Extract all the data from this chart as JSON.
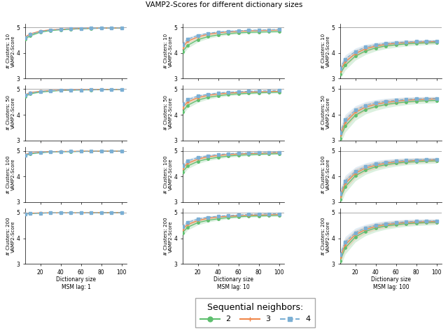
{
  "title": "VAMP2-Scores for different dictionary sizes",
  "n_clusters": [
    10,
    50,
    100,
    200
  ],
  "msm_lags": [
    1,
    10,
    100
  ],
  "msm_lag_labels": [
    "MSM lag: 1",
    "MSM lag: 10",
    "MSM lag: 100"
  ],
  "dict_sizes": [
    5,
    10,
    20,
    30,
    40,
    50,
    60,
    70,
    80,
    90,
    100
  ],
  "xlabel": "Dictionary size",
  "seq_neighbors": [
    2,
    3,
    4
  ],
  "colors": [
    "#5dbf6e",
    "#f0874a",
    "#7bafd4"
  ],
  "colors_fill": [
    "#5dbf6e",
    "#f0874a",
    "#7bafd4"
  ],
  "markers": [
    "o",
    "+",
    "s"
  ],
  "linestyles": [
    "-",
    "-",
    "--"
  ],
  "legend_label": "Sequential neighbors:",
  "ylim": [
    3,
    5.15
  ],
  "yticks": [
    3,
    4,
    5
  ],
  "xticks": [
    20,
    40,
    60,
    80,
    100
  ],
  "hline_y": 5.0,
  "data": {
    "lag1": {
      "clusters10": {
        "n2": {
          "mean": [
            4.55,
            4.68,
            4.82,
            4.88,
            4.91,
            4.93,
            4.95,
            4.96,
            4.97,
            4.97,
            4.98
          ],
          "std": [
            0.04,
            0.035,
            0.025,
            0.018,
            0.015,
            0.012,
            0.01,
            0.009,
            0.008,
            0.008,
            0.007
          ]
        },
        "n3": {
          "mean": [
            4.63,
            4.75,
            4.86,
            4.91,
            4.93,
            4.95,
            4.96,
            4.97,
            4.97,
            4.98,
            4.98
          ],
          "std": [
            0.035,
            0.028,
            0.02,
            0.015,
            0.012,
            0.01,
            0.009,
            0.008,
            0.007,
            0.007,
            0.006
          ]
        },
        "n4": {
          "mean": [
            4.6,
            4.73,
            4.84,
            4.9,
            4.93,
            4.95,
            4.96,
            4.97,
            4.97,
            4.98,
            4.98
          ],
          "std": [
            0.038,
            0.03,
            0.022,
            0.016,
            0.013,
            0.011,
            0.009,
            0.008,
            0.007,
            0.007,
            0.006
          ]
        }
      },
      "clusters50": {
        "n2": {
          "mean": [
            4.72,
            4.82,
            4.89,
            4.92,
            4.95,
            4.96,
            4.97,
            4.97,
            4.98,
            4.98,
            4.99
          ],
          "std": [
            0.035,
            0.028,
            0.02,
            0.015,
            0.012,
            0.01,
            0.009,
            0.008,
            0.007,
            0.006,
            0.006
          ]
        },
        "n3": {
          "mean": [
            4.78,
            4.87,
            4.92,
            4.95,
            4.96,
            4.97,
            4.98,
            4.98,
            4.99,
            4.99,
            4.99
          ],
          "std": [
            0.03,
            0.023,
            0.016,
            0.012,
            0.01,
            0.009,
            0.008,
            0.007,
            0.006,
            0.006,
            0.005
          ]
        },
        "n4": {
          "mean": [
            4.76,
            4.85,
            4.91,
            4.94,
            4.96,
            4.97,
            4.97,
            4.98,
            4.98,
            4.99,
            4.99
          ],
          "std": [
            0.032,
            0.025,
            0.018,
            0.013,
            0.011,
            0.009,
            0.008,
            0.007,
            0.007,
            0.006,
            0.005
          ]
        }
      },
      "clusters100": {
        "n2": {
          "mean": [
            4.82,
            4.89,
            4.93,
            4.96,
            4.97,
            4.97,
            4.98,
            4.98,
            4.99,
            4.99,
            4.99
          ],
          "std": [
            0.028,
            0.022,
            0.016,
            0.012,
            0.01,
            0.009,
            0.008,
            0.007,
            0.006,
            0.006,
            0.005
          ]
        },
        "n3": {
          "mean": [
            4.86,
            4.92,
            4.95,
            4.97,
            4.98,
            4.98,
            4.99,
            4.99,
            4.99,
            4.99,
            4.99
          ],
          "std": [
            0.024,
            0.018,
            0.013,
            0.01,
            0.008,
            0.007,
            0.006,
            0.006,
            0.005,
            0.005,
            0.004
          ]
        },
        "n4": {
          "mean": [
            4.84,
            4.91,
            4.94,
            4.97,
            4.97,
            4.98,
            4.98,
            4.99,
            4.99,
            4.99,
            4.99
          ],
          "std": [
            0.026,
            0.02,
            0.015,
            0.011,
            0.009,
            0.008,
            0.007,
            0.006,
            0.006,
            0.005,
            0.005
          ]
        }
      },
      "clusters200": {
        "n2": {
          "mean": [
            4.94,
            4.97,
            4.98,
            4.99,
            4.99,
            4.99,
            4.99,
            4.99,
            4.99,
            5.0,
            5.0
          ],
          "std": [
            0.015,
            0.01,
            0.008,
            0.006,
            0.005,
            0.005,
            0.004,
            0.004,
            0.004,
            0.003,
            0.003
          ]
        },
        "n3": {
          "mean": [
            4.96,
            4.98,
            4.99,
            4.99,
            4.99,
            4.99,
            4.99,
            5.0,
            5.0,
            5.0,
            5.0
          ],
          "std": [
            0.012,
            0.008,
            0.006,
            0.005,
            0.004,
            0.004,
            0.003,
            0.003,
            0.003,
            0.003,
            0.002
          ]
        },
        "n4": {
          "mean": [
            4.95,
            4.97,
            4.98,
            4.99,
            4.99,
            4.99,
            4.99,
            4.99,
            5.0,
            5.0,
            5.0
          ],
          "std": [
            0.013,
            0.009,
            0.007,
            0.005,
            0.004,
            0.004,
            0.003,
            0.003,
            0.003,
            0.003,
            0.002
          ]
        }
      }
    },
    "lag10": {
      "clusters10": {
        "n2": {
          "mean": [
            4.05,
            4.3,
            4.52,
            4.64,
            4.71,
            4.76,
            4.79,
            4.81,
            4.82,
            4.83,
            4.84
          ],
          "std": [
            0.13,
            0.11,
            0.09,
            0.07,
            0.06,
            0.05,
            0.05,
            0.04,
            0.04,
            0.03,
            0.03
          ]
        },
        "n3": {
          "mean": [
            4.22,
            4.46,
            4.63,
            4.73,
            4.79,
            4.83,
            4.85,
            4.87,
            4.88,
            4.89,
            4.9
          ],
          "std": [
            0.11,
            0.09,
            0.07,
            0.06,
            0.05,
            0.04,
            0.04,
            0.03,
            0.03,
            0.03,
            0.02
          ]
        },
        "n4": {
          "mean": [
            4.33,
            4.54,
            4.69,
            4.77,
            4.82,
            4.85,
            4.87,
            4.89,
            4.9,
            4.91,
            4.92
          ],
          "std": [
            0.1,
            0.08,
            0.06,
            0.05,
            0.04,
            0.04,
            0.03,
            0.03,
            0.03,
            0.02,
            0.02
          ]
        }
      },
      "clusters50": {
        "n2": {
          "mean": [
            4.12,
            4.37,
            4.57,
            4.68,
            4.74,
            4.79,
            4.82,
            4.84,
            4.86,
            4.87,
            4.88
          ],
          "std": [
            0.13,
            0.11,
            0.09,
            0.07,
            0.06,
            0.05,
            0.05,
            0.04,
            0.04,
            0.03,
            0.03
          ]
        },
        "n3": {
          "mean": [
            4.28,
            4.5,
            4.67,
            4.76,
            4.81,
            4.85,
            4.87,
            4.89,
            4.9,
            4.91,
            4.92
          ],
          "std": [
            0.11,
            0.09,
            0.07,
            0.06,
            0.05,
            0.04,
            0.04,
            0.03,
            0.03,
            0.03,
            0.02
          ]
        },
        "n4": {
          "mean": [
            4.4,
            4.59,
            4.73,
            4.8,
            4.85,
            4.88,
            4.9,
            4.92,
            4.93,
            4.94,
            4.95
          ],
          "std": [
            0.1,
            0.08,
            0.06,
            0.05,
            0.04,
            0.04,
            0.03,
            0.03,
            0.02,
            0.02,
            0.02
          ]
        }
      },
      "clusters100": {
        "n2": {
          "mean": [
            4.18,
            4.41,
            4.59,
            4.69,
            4.75,
            4.8,
            4.83,
            4.85,
            4.87,
            4.88,
            4.89
          ],
          "std": [
            0.13,
            0.11,
            0.09,
            0.07,
            0.06,
            0.05,
            0.05,
            0.04,
            0.04,
            0.03,
            0.03
          ]
        },
        "n3": {
          "mean": [
            4.32,
            4.52,
            4.68,
            4.77,
            4.82,
            4.86,
            4.88,
            4.9,
            4.91,
            4.92,
            4.93
          ],
          "std": [
            0.11,
            0.09,
            0.07,
            0.06,
            0.05,
            0.04,
            0.04,
            0.03,
            0.03,
            0.02,
            0.02
          ]
        },
        "n4": {
          "mean": [
            4.42,
            4.61,
            4.74,
            4.81,
            4.86,
            4.89,
            4.91,
            4.92,
            4.93,
            4.94,
            4.95
          ],
          "std": [
            0.1,
            0.08,
            0.06,
            0.05,
            0.04,
            0.04,
            0.03,
            0.03,
            0.02,
            0.02,
            0.02
          ]
        }
      },
      "clusters200": {
        "n2": {
          "mean": [
            4.22,
            4.43,
            4.61,
            4.7,
            4.76,
            4.81,
            4.84,
            4.86,
            4.87,
            4.88,
            4.89
          ],
          "std": [
            0.13,
            0.11,
            0.09,
            0.07,
            0.06,
            0.05,
            0.05,
            0.04,
            0.04,
            0.03,
            0.03
          ]
        },
        "n3": {
          "mean": [
            4.35,
            4.54,
            4.69,
            4.78,
            4.83,
            4.86,
            4.88,
            4.9,
            4.91,
            4.92,
            4.93
          ],
          "std": [
            0.11,
            0.09,
            0.07,
            0.06,
            0.05,
            0.04,
            0.04,
            0.03,
            0.03,
            0.02,
            0.02
          ]
        },
        "n4": {
          "mean": [
            4.44,
            4.62,
            4.75,
            4.82,
            4.86,
            4.89,
            4.91,
            4.93,
            4.94,
            4.95,
            4.95
          ],
          "std": [
            0.1,
            0.08,
            0.06,
            0.05,
            0.04,
            0.04,
            0.03,
            0.03,
            0.02,
            0.02,
            0.02
          ]
        }
      }
    },
    "lag100": {
      "clusters10": {
        "n2": {
          "mean": [
            3.18,
            3.52,
            3.88,
            4.08,
            4.2,
            4.28,
            4.32,
            4.36,
            4.38,
            4.4,
            4.41
          ],
          "std": [
            0.19,
            0.19,
            0.16,
            0.14,
            0.12,
            0.11,
            0.1,
            0.09,
            0.08,
            0.08,
            0.07
          ]
        },
        "n3": {
          "mean": [
            3.3,
            3.66,
            3.98,
            4.17,
            4.27,
            4.34,
            4.38,
            4.41,
            4.43,
            4.44,
            4.45
          ],
          "std": [
            0.17,
            0.17,
            0.14,
            0.12,
            0.1,
            0.09,
            0.08,
            0.08,
            0.07,
            0.07,
            0.06
          ]
        },
        "n4": {
          "mean": [
            3.4,
            3.76,
            4.06,
            4.23,
            4.32,
            4.38,
            4.41,
            4.43,
            4.45,
            4.46,
            4.47
          ],
          "std": [
            0.16,
            0.16,
            0.13,
            0.11,
            0.09,
            0.08,
            0.08,
            0.07,
            0.06,
            0.06,
            0.06
          ]
        }
      },
      "clusters50": {
        "n2": {
          "mean": [
            3.08,
            3.56,
            3.98,
            4.2,
            4.32,
            4.4,
            4.46,
            4.5,
            4.53,
            4.55,
            4.56
          ],
          "std": [
            0.24,
            0.24,
            0.2,
            0.17,
            0.15,
            0.13,
            0.12,
            0.11,
            0.1,
            0.1,
            0.09
          ]
        },
        "n3": {
          "mean": [
            3.2,
            3.7,
            4.1,
            4.3,
            4.41,
            4.48,
            4.53,
            4.57,
            4.59,
            4.61,
            4.62
          ],
          "std": [
            0.22,
            0.22,
            0.18,
            0.15,
            0.13,
            0.12,
            0.11,
            0.1,
            0.09,
            0.08,
            0.08
          ]
        },
        "n4": {
          "mean": [
            3.3,
            3.8,
            4.18,
            4.37,
            4.47,
            4.53,
            4.57,
            4.6,
            4.62,
            4.63,
            4.64
          ],
          "std": [
            0.21,
            0.21,
            0.17,
            0.14,
            0.12,
            0.11,
            0.1,
            0.09,
            0.08,
            0.08,
            0.07
          ]
        }
      },
      "clusters100": {
        "n2": {
          "mean": [
            3.1,
            3.6,
            4.03,
            4.25,
            4.38,
            4.46,
            4.52,
            4.56,
            4.58,
            4.6,
            4.61
          ],
          "std": [
            0.24,
            0.24,
            0.2,
            0.17,
            0.15,
            0.13,
            0.12,
            0.11,
            0.1,
            0.1,
            0.09
          ]
        },
        "n3": {
          "mean": [
            3.22,
            3.73,
            4.13,
            4.33,
            4.44,
            4.52,
            4.57,
            4.6,
            4.63,
            4.64,
            4.65
          ],
          "std": [
            0.22,
            0.22,
            0.18,
            0.15,
            0.13,
            0.12,
            0.11,
            0.1,
            0.09,
            0.08,
            0.08
          ]
        },
        "n4": {
          "mean": [
            3.33,
            3.83,
            4.2,
            4.39,
            4.5,
            4.56,
            4.6,
            4.63,
            4.65,
            4.66,
            4.67
          ],
          "std": [
            0.21,
            0.21,
            0.17,
            0.14,
            0.12,
            0.11,
            0.1,
            0.09,
            0.08,
            0.08,
            0.07
          ]
        }
      },
      "clusters200": {
        "n2": {
          "mean": [
            3.12,
            3.62,
            4.05,
            4.27,
            4.4,
            4.48,
            4.53,
            4.57,
            4.59,
            4.61,
            4.62
          ],
          "std": [
            0.24,
            0.24,
            0.2,
            0.17,
            0.15,
            0.13,
            0.12,
            0.11,
            0.1,
            0.1,
            0.09
          ]
        },
        "n3": {
          "mean": [
            3.25,
            3.75,
            4.14,
            4.34,
            4.46,
            4.53,
            4.58,
            4.61,
            4.63,
            4.65,
            4.65
          ],
          "std": [
            0.22,
            0.22,
            0.18,
            0.15,
            0.13,
            0.12,
            0.11,
            0.1,
            0.09,
            0.08,
            0.08
          ]
        },
        "n4": {
          "mean": [
            3.35,
            3.85,
            4.22,
            4.4,
            4.51,
            4.57,
            4.61,
            4.64,
            4.66,
            4.67,
            4.68
          ],
          "std": [
            0.21,
            0.21,
            0.17,
            0.14,
            0.12,
            0.11,
            0.1,
            0.09,
            0.08,
            0.08,
            0.07
          ]
        }
      }
    }
  }
}
